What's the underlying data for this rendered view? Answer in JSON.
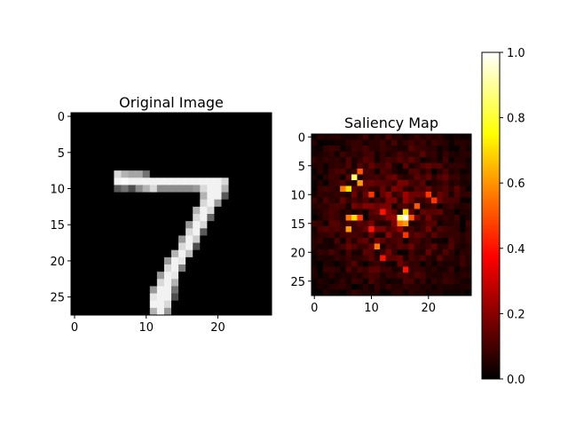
{
  "chart_data": [
    {
      "type": "heatmap",
      "title": "Original Image",
      "colormap": "gray",
      "shape": [
        28,
        28
      ],
      "xlim": [
        -0.5,
        27.5
      ],
      "ylim": [
        27.5,
        -0.5
      ],
      "xticks": [
        0,
        10,
        20
      ],
      "yticks": [
        0,
        5,
        10,
        15,
        20,
        25
      ],
      "pixels": [
        {
          "r": 8,
          "c": 6,
          "v": 0.85
        },
        {
          "r": 8,
          "c": 7,
          "v": 0.7
        },
        {
          "r": 8,
          "c": 8,
          "v": 0.65
        },
        {
          "r": 8,
          "c": 9,
          "v": 0.65
        },
        {
          "r": 8,
          "c": 10,
          "v": 0.45
        },
        {
          "r": 9,
          "c": 6,
          "v": 0.95
        },
        {
          "r": 9,
          "c": 7,
          "v": 0.98
        },
        {
          "r": 9,
          "c": 8,
          "v": 0.95
        },
        {
          "r": 9,
          "c": 9,
          "v": 0.95
        },
        {
          "r": 9,
          "c": 10,
          "v": 0.95
        },
        {
          "r": 9,
          "c": 11,
          "v": 0.95
        },
        {
          "r": 9,
          "c": 12,
          "v": 0.95
        },
        {
          "r": 9,
          "c": 13,
          "v": 0.95
        },
        {
          "r": 9,
          "c": 14,
          "v": 0.95
        },
        {
          "r": 9,
          "c": 15,
          "v": 0.95
        },
        {
          "r": 9,
          "c": 16,
          "v": 0.95
        },
        {
          "r": 9,
          "c": 17,
          "v": 0.95
        },
        {
          "r": 9,
          "c": 18,
          "v": 0.95
        },
        {
          "r": 9,
          "c": 19,
          "v": 0.95
        },
        {
          "r": 9,
          "c": 20,
          "v": 0.95
        },
        {
          "r": 9,
          "c": 21,
          "v": 0.85
        },
        {
          "r": 10,
          "c": 6,
          "v": 0.35
        },
        {
          "r": 10,
          "c": 7,
          "v": 0.45
        },
        {
          "r": 10,
          "c": 8,
          "v": 0.3
        },
        {
          "r": 10,
          "c": 9,
          "v": 0.55
        },
        {
          "r": 10,
          "c": 10,
          "v": 0.7
        },
        {
          "r": 10,
          "c": 11,
          "v": 0.85
        },
        {
          "r": 10,
          "c": 12,
          "v": 0.55
        },
        {
          "r": 10,
          "c": 13,
          "v": 0.55
        },
        {
          "r": 10,
          "c": 14,
          "v": 0.55
        },
        {
          "r": 10,
          "c": 15,
          "v": 0.55
        },
        {
          "r": 10,
          "c": 16,
          "v": 0.55
        },
        {
          "r": 10,
          "c": 17,
          "v": 0.6
        },
        {
          "r": 10,
          "c": 18,
          "v": 0.85
        },
        {
          "r": 10,
          "c": 19,
          "v": 0.95
        },
        {
          "r": 10,
          "c": 20,
          "v": 0.95
        },
        {
          "r": 10,
          "c": 21,
          "v": 0.7
        },
        {
          "r": 11,
          "c": 18,
          "v": 0.7
        },
        {
          "r": 11,
          "c": 19,
          "v": 0.95
        },
        {
          "r": 11,
          "c": 20,
          "v": 0.95
        },
        {
          "r": 11,
          "c": 21,
          "v": 0.35
        },
        {
          "r": 12,
          "c": 18,
          "v": 0.85
        },
        {
          "r": 12,
          "c": 19,
          "v": 0.95
        },
        {
          "r": 12,
          "c": 20,
          "v": 0.6
        },
        {
          "r": 13,
          "c": 17,
          "v": 0.7
        },
        {
          "r": 13,
          "c": 18,
          "v": 0.95
        },
        {
          "r": 13,
          "c": 19,
          "v": 0.85
        },
        {
          "r": 14,
          "c": 17,
          "v": 0.85
        },
        {
          "r": 14,
          "c": 18,
          "v": 0.95
        },
        {
          "r": 14,
          "c": 19,
          "v": 0.4
        },
        {
          "r": 15,
          "c": 16,
          "v": 0.6
        },
        {
          "r": 15,
          "c": 17,
          "v": 0.95
        },
        {
          "r": 15,
          "c": 18,
          "v": 0.85
        },
        {
          "r": 16,
          "c": 16,
          "v": 0.85
        },
        {
          "r": 16,
          "c": 17,
          "v": 0.95
        },
        {
          "r": 16,
          "c": 18,
          "v": 0.35
        },
        {
          "r": 17,
          "c": 15,
          "v": 0.6
        },
        {
          "r": 17,
          "c": 16,
          "v": 0.95
        },
        {
          "r": 17,
          "c": 17,
          "v": 0.8
        },
        {
          "r": 18,
          "c": 15,
          "v": 0.85
        },
        {
          "r": 18,
          "c": 16,
          "v": 0.95
        },
        {
          "r": 18,
          "c": 17,
          "v": 0.3
        },
        {
          "r": 19,
          "c": 14,
          "v": 0.7
        },
        {
          "r": 19,
          "c": 15,
          "v": 0.95
        },
        {
          "r": 19,
          "c": 16,
          "v": 0.75
        },
        {
          "r": 20,
          "c": 13,
          "v": 0.6
        },
        {
          "r": 20,
          "c": 14,
          "v": 0.95
        },
        {
          "r": 20,
          "c": 15,
          "v": 0.9
        },
        {
          "r": 21,
          "c": 13,
          "v": 0.85
        },
        {
          "r": 21,
          "c": 14,
          "v": 0.95
        },
        {
          "r": 21,
          "c": 15,
          "v": 0.5
        },
        {
          "r": 22,
          "c": 12,
          "v": 0.6
        },
        {
          "r": 22,
          "c": 13,
          "v": 0.95
        },
        {
          "r": 22,
          "c": 14,
          "v": 0.9
        },
        {
          "r": 23,
          "c": 12,
          "v": 0.85
        },
        {
          "r": 23,
          "c": 13,
          "v": 0.95
        },
        {
          "r": 23,
          "c": 14,
          "v": 0.7
        },
        {
          "r": 24,
          "c": 11,
          "v": 0.6
        },
        {
          "r": 24,
          "c": 12,
          "v": 0.95
        },
        {
          "r": 24,
          "c": 13,
          "v": 0.95
        },
        {
          "r": 24,
          "c": 14,
          "v": 0.45
        },
        {
          "r": 25,
          "c": 11,
          "v": 0.9
        },
        {
          "r": 25,
          "c": 12,
          "v": 0.95
        },
        {
          "r": 25,
          "c": 13,
          "v": 0.95
        },
        {
          "r": 25,
          "c": 14,
          "v": 0.3
        },
        {
          "r": 26,
          "c": 11,
          "v": 0.95
        },
        {
          "r": 26,
          "c": 12,
          "v": 0.95
        },
        {
          "r": 26,
          "c": 13,
          "v": 0.85
        },
        {
          "r": 27,
          "c": 11,
          "v": 0.7
        },
        {
          "r": 27,
          "c": 12,
          "v": 0.95
        },
        {
          "r": 27,
          "c": 13,
          "v": 0.6
        }
      ]
    },
    {
      "type": "heatmap",
      "title": "Saliency Map",
      "colormap": "hot",
      "shape": [
        28,
        28
      ],
      "xlim": [
        -0.5,
        27.5
      ],
      "ylim": [
        27.5,
        -0.5
      ],
      "xticks": [
        0,
        10,
        20
      ],
      "yticks": [
        0,
        5,
        10,
        15,
        20,
        25
      ],
      "peaks": [
        {
          "r": 14,
          "c": 16,
          "v": 1.0
        },
        {
          "r": 14,
          "c": 15,
          "v": 0.85
        },
        {
          "r": 13,
          "c": 16,
          "v": 0.7
        },
        {
          "r": 15,
          "c": 16,
          "v": 0.6
        },
        {
          "r": 15,
          "c": 15,
          "v": 0.55
        },
        {
          "r": 14,
          "c": 17,
          "v": 0.5
        },
        {
          "r": 7,
          "c": 7,
          "v": 0.85
        },
        {
          "r": 9,
          "c": 6,
          "v": 0.7
        },
        {
          "r": 9,
          "c": 5,
          "v": 0.55
        },
        {
          "r": 8,
          "c": 8,
          "v": 0.6
        },
        {
          "r": 6,
          "c": 8,
          "v": 0.5
        },
        {
          "r": 14,
          "c": 7,
          "v": 0.7
        },
        {
          "r": 14,
          "c": 6,
          "v": 0.55
        },
        {
          "r": 16,
          "c": 6,
          "v": 0.6
        },
        {
          "r": 14,
          "c": 8,
          "v": 0.45
        },
        {
          "r": 19,
          "c": 11,
          "v": 0.55
        },
        {
          "r": 12,
          "c": 18,
          "v": 0.5
        },
        {
          "r": 11,
          "c": 21,
          "v": 0.45
        },
        {
          "r": 10,
          "c": 20,
          "v": 0.45
        },
        {
          "r": 17,
          "c": 16,
          "v": 0.45
        },
        {
          "r": 13,
          "c": 12,
          "v": 0.4
        },
        {
          "r": 16,
          "c": 10,
          "v": 0.4
        },
        {
          "r": 21,
          "c": 12,
          "v": 0.4
        },
        {
          "r": 23,
          "c": 16,
          "v": 0.4
        },
        {
          "r": 10,
          "c": 10,
          "v": 0.45
        }
      ],
      "peak_location": [
        14,
        16
      ]
    }
  ],
  "colorbar": {
    "range": [
      0.0,
      1.0
    ],
    "ticks": [
      "0.0",
      "0.2",
      "0.4",
      "0.6",
      "0.8",
      "1.0"
    ],
    "colormap": "hot"
  }
}
